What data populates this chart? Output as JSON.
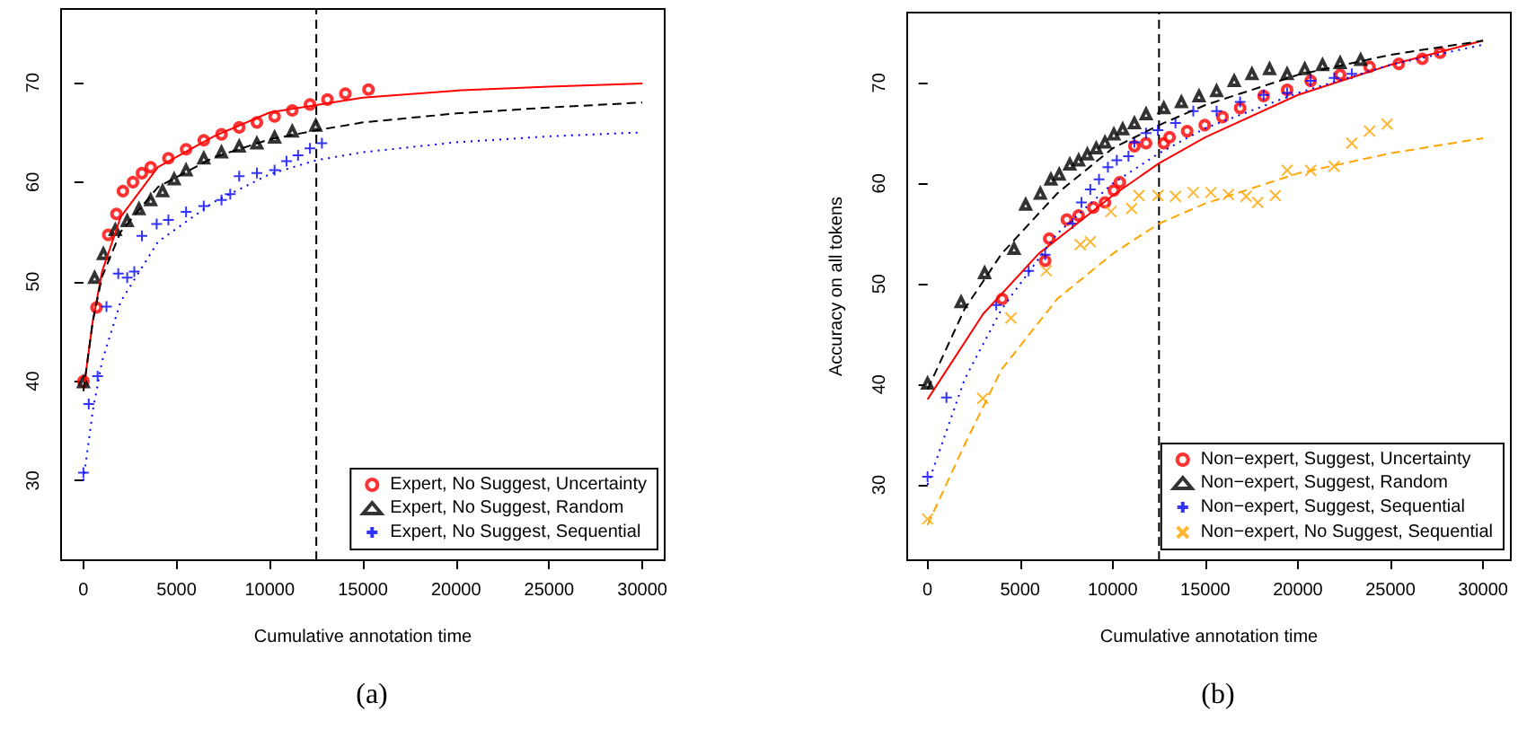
{
  "chart_data": [
    {
      "type": "scatter",
      "title": "(a)",
      "xlabel": "Cumulative annotation time",
      "xlim": [
        -1200,
        31200
      ],
      "ylim": [
        22,
        77.4
      ],
      "xticks": [
        0,
        5000,
        10000,
        15000,
        20000,
        25000,
        30000
      ],
      "yticks": [
        30,
        40,
        50,
        60,
        70
      ],
      "grid": false,
      "legend": "bottom right",
      "ref_lines": [
        {
          "axis": "x",
          "value": 12500,
          "color": "#000000",
          "line_style": "dashed"
        }
      ],
      "series": [
        {
          "name": "Expert, No Suggest, Uncertainty",
          "color": "#ff0000",
          "marker": "circle",
          "x": [
            0,
            700,
            1330,
            1770,
            2120,
            2660,
            3140,
            3610,
            4560,
            5510,
            6460,
            7410,
            8360,
            9310,
            10260,
            11210,
            12160,
            13100,
            14060,
            15300
          ],
          "values": [
            40,
            47.4,
            54.7,
            56.8,
            59.1,
            60,
            60.9,
            61.5,
            62.4,
            63.3,
            64.2,
            64.8,
            65.5,
            66,
            66.6,
            67.2,
            67.8,
            68.3,
            68.9,
            69.3
          ]
        },
        {
          "name": "Expert, No Suggest, Random",
          "color": "#000000",
          "marker": "triangle",
          "x": [
            0,
            600,
            1070,
            1710,
            2350,
            2980,
            3610,
            4250,
            4870,
            5510,
            6460,
            7410,
            8360,
            9310,
            10260,
            11210,
            12470
          ],
          "values": [
            39.9,
            50.4,
            52.8,
            55.2,
            56.1,
            57.3,
            58.2,
            59.1,
            60.3,
            61.2,
            62.4,
            63,
            63.6,
            63.9,
            64.5,
            65.1,
            65.7
          ]
        },
        {
          "name": "Expert, No Suggest, Sequential",
          "color": "#0000ff",
          "marker": "plus",
          "x": [
            0,
            285,
            760,
            1235,
            1870,
            2350,
            2730,
            3140,
            3930,
            4560,
            5510,
            6460,
            7410,
            7880,
            8360,
            9310,
            10260,
            10900,
            11520,
            12160,
            12800
          ],
          "values": [
            30.8,
            37.7,
            40.5,
            47.5,
            50.8,
            50.4,
            51,
            54.6,
            55.8,
            56.2,
            57,
            57.6,
            58.2,
            58.8,
            60.6,
            60.9,
            61.2,
            62.1,
            62.7,
            63.4,
            63.9
          ]
        },
        {
          "type": "line",
          "color": "#ff0000",
          "line_style": "solid",
          "x": [
            0,
            500,
            1000,
            2000,
            4000,
            7000,
            10000,
            15000,
            20000,
            25000,
            30000
          ],
          "values": [
            39,
            46,
            51,
            56.5,
            61.5,
            64.6,
            67,
            68.5,
            69.2,
            69.6,
            69.9
          ]
        },
        {
          "type": "line",
          "color": "#000000",
          "line_style": "dashed",
          "x": [
            0,
            500,
            1000,
            2000,
            4000,
            7000,
            10000,
            12500,
            15000,
            20000,
            25000,
            30000
          ],
          "values": [
            39,
            46,
            50.5,
            55,
            59.5,
            62.5,
            64.3,
            65.2,
            66,
            66.9,
            67.5,
            68
          ]
        },
        {
          "type": "line",
          "color": "#0000ff",
          "line_style": "dotted",
          "x": [
            0,
            500,
            1000,
            2000,
            4000,
            7000,
            10000,
            12500,
            15000,
            20000,
            25000,
            30000
          ],
          "values": [
            30,
            37,
            42,
            48,
            54,
            58,
            60.8,
            62.2,
            63,
            64,
            64.6,
            65
          ]
        }
      ]
    },
    {
      "type": "scatter",
      "title": "(b)",
      "xlabel": "Cumulative annotation time",
      "ylabel": "Accuracy on all tokens",
      "xlim": [
        -1100,
        31500
      ],
      "ylim": [
        22.5,
        77
      ],
      "xticks": [
        0,
        5000,
        10000,
        15000,
        20000,
        25000,
        30000
      ],
      "yticks": [
        30,
        40,
        50,
        60,
        70
      ],
      "grid": false,
      "legend": "bottom right",
      "ref_lines": [
        {
          "axis": "x",
          "value": 12500,
          "color": "#000000",
          "line_style": "dashed"
        }
      ],
      "series": [
        {
          "name": "Non−expert, Suggest, Uncertainty",
          "color": "#ff0000",
          "marker": "circle",
          "x": [
            4030,
            6350,
            6570,
            7520,
            8160,
            8950,
            9580,
            10060,
            10380,
            11170,
            11800,
            12760,
            13070,
            14020,
            14970,
            15930,
            16880,
            18150,
            19420,
            20690,
            22280,
            23870,
            25450,
            26720,
            27680
          ],
          "values": [
            48.5,
            52.3,
            54.5,
            56.4,
            56.8,
            57.6,
            58.1,
            59.3,
            60.1,
            63.7,
            64,
            64,
            64.6,
            65.2,
            65.8,
            66.6,
            67.5,
            68.7,
            69.3,
            70.2,
            70.8,
            71.6,
            71.9,
            72.4,
            73
          ]
        },
        {
          "name": "Non−expert, Suggest, Random",
          "color": "#000000",
          "marker": "triangle",
          "x": [
            0,
            1810,
            3080,
            4670,
            5300,
            6090,
            6660,
            7110,
            7680,
            8160,
            8630,
            9110,
            9580,
            10060,
            10540,
            11170,
            11800,
            12760,
            13710,
            14660,
            15610,
            16560,
            17520,
            18470,
            19420,
            20370,
            21330,
            22280,
            23390
          ],
          "values": [
            40.1,
            48.2,
            51.1,
            53.5,
            57.9,
            59,
            60.4,
            60.9,
            61.9,
            62.3,
            62.9,
            63.5,
            64.1,
            64.9,
            65.4,
            66,
            66.9,
            67.5,
            68.1,
            68.7,
            69.2,
            70.2,
            70.9,
            71.4,
            70.9,
            71.4,
            71.8,
            72,
            72.3
          ]
        },
        {
          "name": "Non−expert, Suggest, Sequential",
          "color": "#0000ff",
          "marker": "plus",
          "x": [
            0,
            1020,
            3710,
            5460,
            6350,
            7830,
            8310,
            8790,
            9260,
            9740,
            10220,
            10850,
            11170,
            11800,
            12440,
            13390,
            14350,
            15610,
            16880,
            18150,
            19420,
            20690,
            21960,
            22910
          ],
          "values": [
            30.8,
            38.7,
            47.9,
            51.3,
            52.9,
            56,
            58.1,
            59.4,
            60.4,
            61.6,
            62.3,
            62.7,
            64.1,
            65,
            65.3,
            66,
            67.2,
            67.2,
            68.1,
            68.8,
            69,
            70.2,
            70.5,
            70.9
          ]
        },
        {
          "name": "Non−expert, No Suggest, Sequential",
          "color": "#ffa500",
          "marker": "cross",
          "x": [
            0,
            2980,
            4500,
            6410,
            8250,
            8790,
            9900,
            11020,
            11420,
            12440,
            13390,
            14350,
            15300,
            16250,
            17200,
            17830,
            18780,
            19420,
            20690,
            21960,
            22910,
            23870,
            24820
          ],
          "values": [
            26.6,
            38.6,
            46.6,
            51.3,
            53.9,
            54.2,
            57.2,
            57.5,
            58.8,
            58.8,
            58.7,
            59.1,
            59.1,
            58.9,
            58.7,
            58.1,
            58.8,
            61.3,
            61.3,
            61.7,
            64,
            65.2,
            65.9
          ]
        },
        {
          "type": "line",
          "color": "#ff0000",
          "line_style": "solid",
          "x": [
            0,
            3000,
            6000,
            10000,
            12500,
            15000,
            20000,
            25000,
            30000
          ],
          "values": [
            38.5,
            47,
            53,
            58.8,
            62,
            64.6,
            68.8,
            71.8,
            74.2
          ]
        },
        {
          "type": "line",
          "color": "#000000",
          "line_style": "dashed",
          "x": [
            0,
            2000,
            4000,
            7000,
            10000,
            12500,
            15000,
            20000,
            25000,
            30000
          ],
          "values": [
            39.5,
            47.5,
            53,
            59,
            63.5,
            65.8,
            67.8,
            70.8,
            72.8,
            74.2
          ]
        },
        {
          "type": "line",
          "color": "#0000ff",
          "line_style": "dotted",
          "x": [
            0,
            2000,
            4000,
            7000,
            10000,
            12500,
            15000,
            20000,
            25000,
            30000
          ],
          "values": [
            30,
            40.5,
            47.5,
            55,
            60,
            63,
            65.5,
            69,
            71.8,
            73.8
          ]
        },
        {
          "type": "line",
          "color": "#ffa500",
          "line_style": "dashed",
          "x": [
            0,
            2000,
            4000,
            7000,
            10000,
            12500,
            15000,
            20000,
            25000,
            30000
          ],
          "values": [
            26,
            34,
            41.5,
            48.5,
            53,
            56,
            58,
            61,
            63,
            64.5
          ]
        }
      ]
    }
  ]
}
